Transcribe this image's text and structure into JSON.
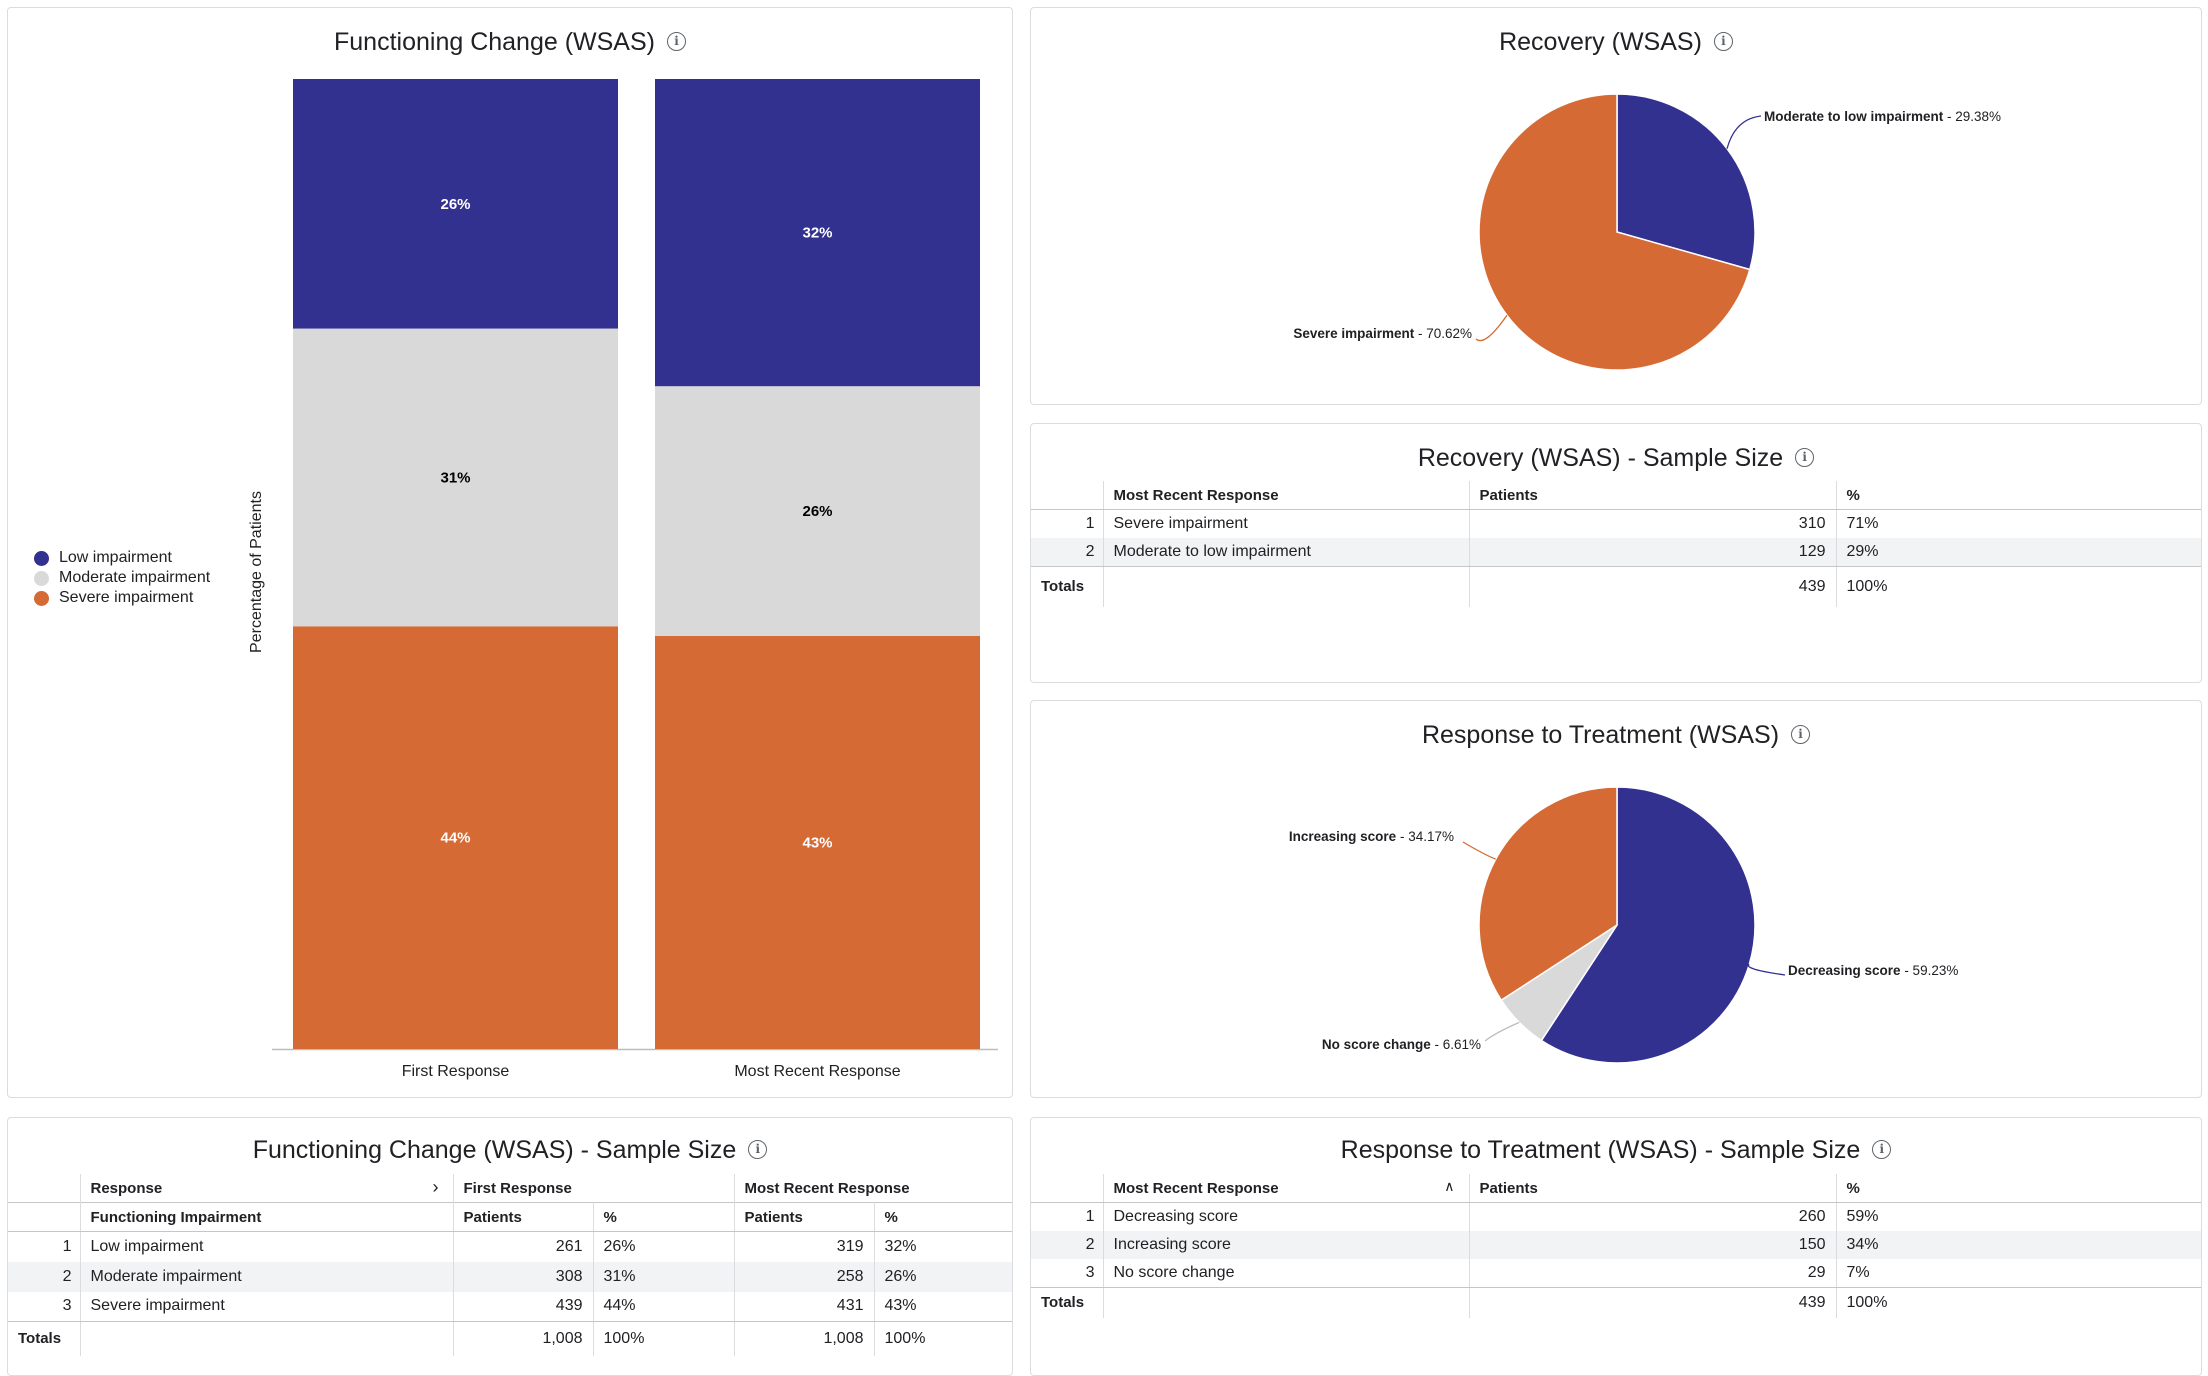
{
  "colors": {
    "low": "#32318f",
    "moderate": "#d9d9d9",
    "severe": "#d66a35"
  },
  "functioning_chart": {
    "title": "Functioning Change (WSAS)",
    "ylabel": "Percentage of Patients",
    "legend": [
      "Low impairment",
      "Moderate impairment",
      "Severe impairment"
    ]
  },
  "recovery_chart": {
    "title": "Recovery (WSAS)"
  },
  "recovery_table": {
    "title": "Recovery (WSAS) - Sample Size",
    "headers": [
      "Most Recent Response",
      "Patients",
      "%"
    ],
    "rows": [
      {
        "idx": "1",
        "label": "Severe impairment",
        "patients": "310",
        "pct": "71%"
      },
      {
        "idx": "2",
        "label": "Moderate to low impairment",
        "patients": "129",
        "pct": "29%"
      }
    ],
    "totals": {
      "label": "Totals",
      "patients": "439",
      "pct": "100%"
    }
  },
  "response_chart": {
    "title": "Response to Treatment (WSAS)"
  },
  "functioning_table": {
    "title": "Functioning Change (WSAS) - Sample Size",
    "col_group_label": "Response",
    "groups": [
      "First Response",
      "Most Recent Response"
    ],
    "row_header": "Functioning Impairment",
    "sub_headers": [
      "Patients",
      "%"
    ],
    "rows": [
      {
        "idx": "1",
        "label": "Low impairment",
        "first_patients": "261",
        "first_pct": "26%",
        "recent_patients": "319",
        "recent_pct": "32%"
      },
      {
        "idx": "2",
        "label": "Moderate impairment",
        "first_patients": "308",
        "first_pct": "31%",
        "recent_patients": "258",
        "recent_pct": "26%"
      },
      {
        "idx": "3",
        "label": "Severe impairment",
        "first_patients": "439",
        "first_pct": "44%",
        "recent_patients": "431",
        "recent_pct": "43%"
      }
    ],
    "totals": {
      "label": "Totals",
      "first_patients": "1,008",
      "first_pct": "100%",
      "recent_patients": "1,008",
      "recent_pct": "100%"
    }
  },
  "response_table": {
    "title": "Response to Treatment (WSAS) - Sample Size",
    "headers": [
      "Most Recent Response",
      "Patients",
      "%"
    ],
    "rows": [
      {
        "idx": "1",
        "label": "Decreasing score",
        "patients": "260",
        "pct": "59%"
      },
      {
        "idx": "2",
        "label": "Increasing score",
        "patients": "150",
        "pct": "34%"
      },
      {
        "idx": "3",
        "label": "No score change",
        "patients": "29",
        "pct": "7%"
      }
    ],
    "totals": {
      "label": "Totals",
      "patients": "439",
      "pct": "100%"
    }
  },
  "chart_data": [
    {
      "type": "bar",
      "stacked": true,
      "title": "Functioning Change (WSAS)",
      "ylabel": "Percentage of Patients",
      "legend_position": "left",
      "categories": [
        "First Response",
        "Most Recent Response"
      ],
      "series": [
        {
          "name": "Low impairment",
          "values": [
            26,
            32
          ],
          "labels": [
            "26%",
            "32%"
          ]
        },
        {
          "name": "Moderate impairment",
          "values": [
            31,
            26
          ],
          "labels": [
            "31%",
            "26%"
          ]
        },
        {
          "name": "Severe impairment",
          "values": [
            44,
            43
          ],
          "labels": [
            "44%",
            "43%"
          ]
        }
      ]
    },
    {
      "type": "pie",
      "title": "Recovery (WSAS)",
      "slices": [
        {
          "name": "Moderate to low impairment",
          "value": 29.38,
          "label": "29.38%",
          "color": "#32318f"
        },
        {
          "name": "Severe impairment",
          "value": 70.62,
          "label": "70.62%",
          "color": "#d66a35"
        }
      ]
    },
    {
      "type": "pie",
      "title": "Response to Treatment (WSAS)",
      "slices": [
        {
          "name": "Decreasing score",
          "value": 59.23,
          "label": "59.23%",
          "color": "#32318f"
        },
        {
          "name": "No score change",
          "value": 6.61,
          "label": "6.61%",
          "color": "#d9d9d9"
        },
        {
          "name": "Increasing score",
          "value": 34.17,
          "label": "34.17%",
          "color": "#d66a35"
        }
      ]
    }
  ]
}
